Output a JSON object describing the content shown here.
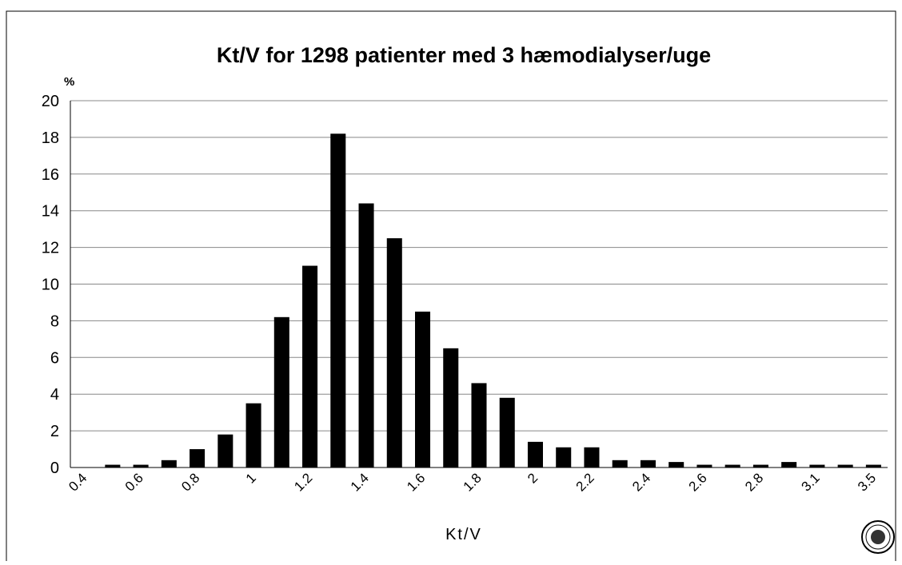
{
  "chart_data": {
    "type": "bar",
    "title": "Kt/V for 1298 patienter med 3 hæmodialyser/uge",
    "y_label": "%",
    "x_label": "Kt/V",
    "categories": [
      "0.4",
      null,
      "0.6",
      null,
      "0.8",
      null,
      "1",
      null,
      "1.2",
      null,
      "1.4",
      null,
      "1.6",
      null,
      "1.8",
      null,
      "2",
      null,
      "2.2",
      null,
      "2.4",
      null,
      "2.6",
      null,
      "2.8",
      null,
      "3.1",
      null,
      "3.5"
    ],
    "values": [
      0,
      0.15,
      0.15,
      0.4,
      1.0,
      1.8,
      3.5,
      8.2,
      11.0,
      18.2,
      14.4,
      12.5,
      8.5,
      6.5,
      4.6,
      3.8,
      1.4,
      1.1,
      1.1,
      0.4,
      0.4,
      0.3,
      0.15,
      0.15,
      0.15,
      0.3,
      0.15,
      0.15,
      0.15
    ],
    "color": "#000000",
    "ylim": [
      0,
      20
    ],
    "yticks": [
      0,
      2,
      4,
      6,
      8,
      10,
      12,
      14,
      16,
      18,
      20
    ],
    "grid": true
  }
}
